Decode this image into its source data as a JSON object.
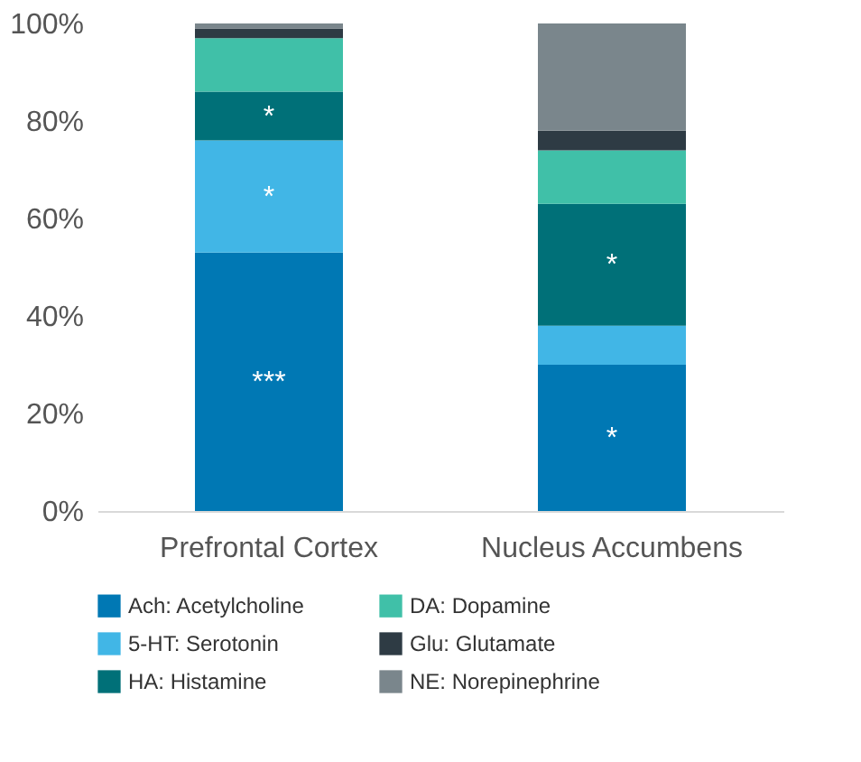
{
  "chart_data": {
    "type": "bar",
    "stacked": true,
    "categories": [
      "Prefrontal Cortex",
      "Nucleus Accumbens"
    ],
    "series": [
      {
        "name": "Ach: Acetylcholine",
        "color": "#0078b4",
        "values": [
          53,
          30
        ],
        "value_labels": [
          "***",
          "*"
        ]
      },
      {
        "name": "5-HT: Serotonin",
        "color": "#41b6e6",
        "values": [
          23,
          8
        ],
        "value_labels": [
          "*",
          null
        ]
      },
      {
        "name": "HA: Histamine",
        "color": "#007078",
        "values": [
          10,
          25
        ],
        "value_labels": [
          "*",
          "*"
        ]
      },
      {
        "name": "DA: Dopamine",
        "color": "#40c0a8",
        "values": [
          11,
          11
        ]
      },
      {
        "name": "Glu: Glutamate",
        "color": "#2e3b44",
        "values": [
          2,
          4
        ]
      },
      {
        "name": "NE: Norepinephrine",
        "color": "#7a868c",
        "values": [
          1,
          22
        ]
      }
    ],
    "ylim": [
      0,
      100
    ],
    "yticks": [
      {
        "value": 0,
        "label": "0%"
      },
      {
        "value": 20,
        "label": "20%"
      },
      {
        "value": 40,
        "label": "40%"
      },
      {
        "value": 60,
        "label": "60%"
      },
      {
        "value": 80,
        "label": "80%"
      },
      {
        "value": 100,
        "label": "100%"
      }
    ],
    "grid": false,
    "legend": "bottom"
  }
}
